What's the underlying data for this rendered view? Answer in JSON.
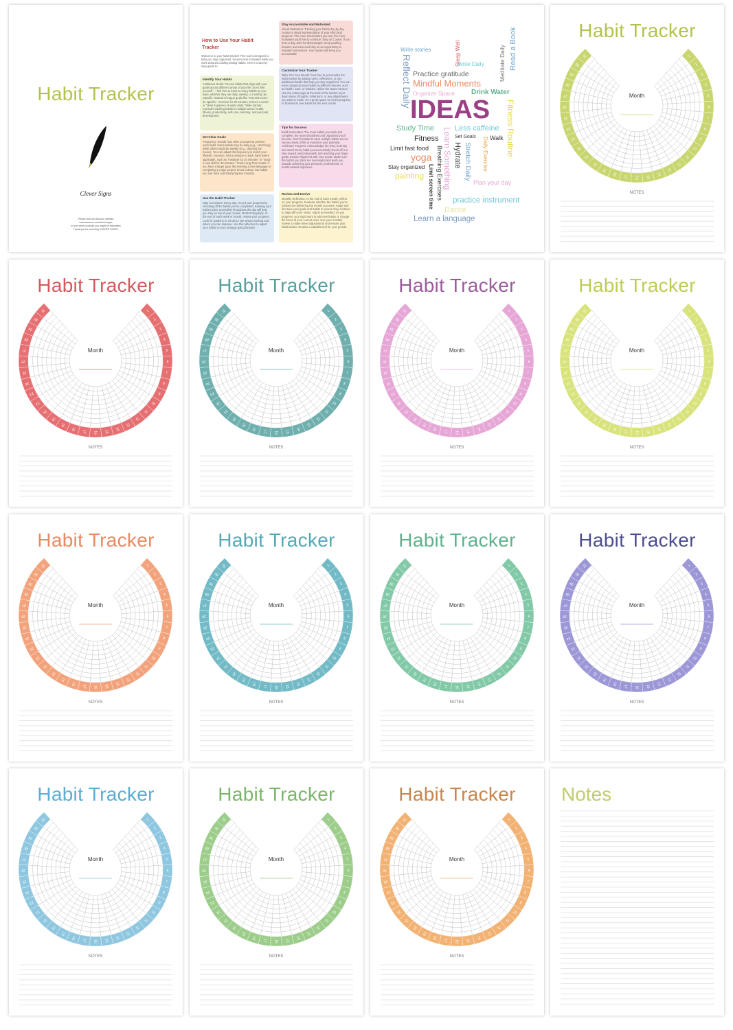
{
  "cover": {
    "title": "Habit Tracker",
    "brand": "Clever Signs",
    "footer": [
      "Please visit our Amazon website",
      "www.amazon.com/cleversigns",
      "to see other products you might be interested",
      "Thank you for choosing CLEVER SIGNS."
    ]
  },
  "guide": {
    "title": "How to Use Your Habit Tracker",
    "intro": "Welcome to your habit tracker! This tool is designed to help you stay organized, focused and motivated while you work towards building lasting habits. Here's a step-by-step guide to:",
    "sections": [
      {
        "heading": "Identify Your Habits",
        "body": "Ambitious Goals: Choose habits that align with your goals across different areas of your life. Don't limit yourself — feel free to track as many habits as you want, whether they are daily, weekly, or monthly. Be Specific: Instead of vague goals like \"exercise more,\" be specific: \"exercise for 30 minutes, 5 times a week\" or \"drink 8 glasses of water daily.\" Wide Variety: Consider tracking habits in multiple areas: health, fitness, productivity, self-care, learning, and personal development."
      },
      {
        "heading": "Set Clear Goals",
        "body": "Frequency: Decide how often you want to perform each habit. Some habits may be daily (e.g., stretching), while others might be weekly (e.g., cleaning the house). You can adjust the frequency to match your lifestyle. Duration: Add a duration to each habit where applicable, such as \"meditate for 20 minutes\" or \"study a new skill for 30 minutes.\" Track Long-Term Goals: If you have a larger goal, like learning a new language or completing a major project, break it down into habits you can track and build progress towards."
      },
      {
        "heading": "Use the Habit Tracker",
        "body": "Stay Consistent: Every day, record your progress by checking off the habits you've completed. Keeping your habit tracker accessible throughout the day will help you stay on top of your routine. Reflect Regularly: At the end of each week or month, review your progress. Look for patterns or trends to see what's working and where you can improve. Use this reflection to adjust your habits or your strategy going forward."
      },
      {
        "heading": "Stay Accountable and Motivated",
        "body": "Visual Motivation: Tracking your habits day by day creates a visual representation of your effort and progress. The more checkmarks you see, the more motivated you'll feel to continue. Stay on Course: If you miss a day, don't be discouraged. Keep pushing forward, and view each day as an opportunity to maintain momentum. Your tracker will keep you accountable."
      },
      {
        "heading": "Customize Your Tracker",
        "body": "Tailor It to Your Needs: Feel free to personalize the habit tracker by adding notes, reflections, or any additional details that help you stay organized. You can even categorize your habits by different themes, such as health, work, or hobbies. Utilize the Notes Section: Use the notes page at the back of the tracker to jot down ideas, thoughts, reflections, or any adjustments you want to make. It's a great space to review progress or brainstorm new habits for the next month."
      },
      {
        "heading": "Tips for Success",
        "body": "Build Momentum: The more habits you track and complete, the more disciplined and organized you'll become. Don't hesitate to track multiple habits across various areas of life to maximize your potential. Celebrate Progress: Acknowledge the wins, both big and small. Every habit you successfully check off is a step toward personal growth and reaching your larger goals. Ensure Alignment with Your Goals: Make sure the habits you track are meaningful and push you towards achieving your personal, professional, or health-related objectives."
      },
      {
        "heading": "Review and Evolve",
        "body": "Monthly Reflection: At the end of each month, reflect on your progress. Evaluate whether the habits you've tracked are delivering the results you want. Adapt and fine-tune your goals and habits to ensure they continue to align with your vision. Adjust as Needed: As you progress, you might want to add new habits or change the focus of your current ones. Use your monthly review to make these adjustments and ensure your habit tracker remains a valuable tool for your growth."
      }
    ]
  },
  "ideas": {
    "words": [
      "Write stories",
      "Sleep Well",
      "Meditate Daily",
      "Read a Book",
      "Reflect Daily",
      "Write Daily",
      "Practice gratitude",
      "Mindful Moments",
      "Organize Space",
      "Drink Water",
      "IDEAS",
      "Fitness Routine",
      "Study Time",
      "Less caffeine",
      "Fitness",
      "Set Goals",
      "Walk",
      "Limit fast food",
      "yoga",
      "Learn Something",
      "Hydrate",
      "Stretch Daily",
      "Daily Exercise",
      "Stay organized",
      "Breathing Exercises",
      "Limit screen time",
      "painting",
      "Dance",
      "Plan your day",
      "practice instrument",
      "Learn a language"
    ]
  },
  "tracker": {
    "title": "Habit Tracker",
    "month": "Month",
    "notes": "NOTES",
    "days": [
      1,
      2,
      3,
      4,
      5,
      6,
      7,
      8,
      9,
      10,
      11,
      12,
      13,
      14,
      15,
      16,
      17,
      18,
      19,
      20,
      21,
      22,
      23,
      24,
      25,
      26,
      27,
      28,
      29,
      30,
      31
    ],
    "colors": [
      "#c9d670",
      "#e66f72",
      "#6fafae",
      "#e6a6d6",
      "#d9e37c",
      "#f2a37c",
      "#72bac6",
      "#82c9a8",
      "#9c97d6",
      "#8ec7df",
      "#9dcd8b",
      "#f2b274"
    ],
    "title_colors": [
      "#b5c24c",
      "#d45a5e",
      "#5a9e9e",
      "#9b5c9b",
      "#bfcb55",
      "#e88a62",
      "#57a8b5",
      "#5fb28d",
      "#4d4f8c",
      "#5aaed1",
      "#7cb56b",
      "#c8864c"
    ]
  },
  "notes_page": {
    "title": "Notes",
    "title_color": "#c3cb6b"
  }
}
